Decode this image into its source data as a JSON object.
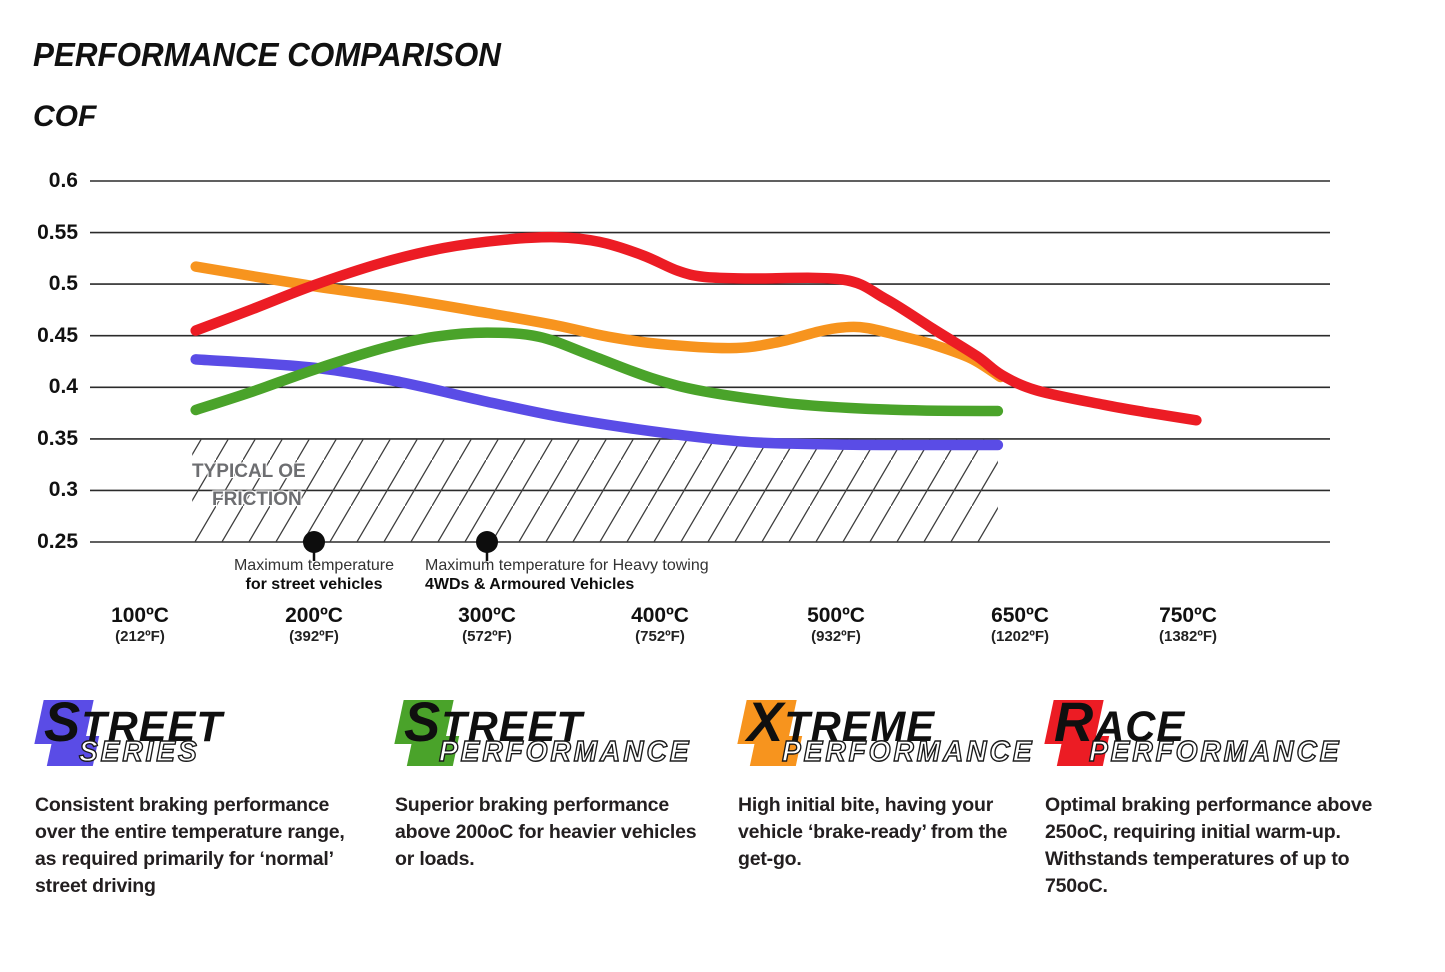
{
  "title": "PERFORMANCE COMPARISON",
  "y_axis_label": "COF",
  "chart_data": {
    "type": "line",
    "title": "PERFORMANCE COMPARISON",
    "ylabel": "COF",
    "ylim": [
      0.25,
      0.6
    ],
    "yticks": [
      0.6,
      0.55,
      0.5,
      0.45,
      0.4,
      0.35,
      0.3,
      0.25
    ],
    "grid": "horizontal",
    "x_ticks": [
      {
        "temp": 100,
        "c": "100ºC",
        "f": "(212ºF)"
      },
      {
        "temp": 200,
        "c": "200ºC",
        "f": "(392ºF)"
      },
      {
        "temp": 300,
        "c": "300ºC",
        "f": "(572ºF)"
      },
      {
        "temp": 400,
        "c": "400ºC",
        "f": "(752ºF)"
      },
      {
        "temp": 500,
        "c": "500ºC",
        "f": "(932ºF)"
      },
      {
        "temp": 650,
        "c": "650ºC",
        "f": "(1202ºF)"
      },
      {
        "temp": 750,
        "c": "750ºC",
        "f": "(1382ºF)"
      }
    ],
    "series": [
      {
        "name": "Street Series",
        "color": "#5a4ce6",
        "points": [
          [
            132,
            0.427
          ],
          [
            200,
            0.419
          ],
          [
            250,
            0.405
          ],
          [
            300,
            0.386
          ],
          [
            340,
            0.372
          ],
          [
            380,
            0.361
          ],
          [
            425,
            0.351
          ],
          [
            455,
            0.3465
          ],
          [
            500,
            0.3445
          ],
          [
            560,
            0.344
          ],
          [
            632,
            0.344
          ]
        ]
      },
      {
        "name": "Street Performance",
        "color": "#4aa32a",
        "points": [
          [
            132,
            0.378
          ],
          [
            165,
            0.396
          ],
          [
            200,
            0.417
          ],
          [
            240,
            0.438
          ],
          [
            270,
            0.449
          ],
          [
            300,
            0.453
          ],
          [
            330,
            0.449
          ],
          [
            360,
            0.431
          ],
          [
            395,
            0.409
          ],
          [
            425,
            0.396
          ],
          [
            470,
            0.385
          ],
          [
            510,
            0.38
          ],
          [
            570,
            0.3775
          ],
          [
            632,
            0.377
          ]
        ]
      },
      {
        "name": "Xtreme Performance",
        "color": "#f7941e",
        "points": [
          [
            132,
            0.517
          ],
          [
            200,
            0.498
          ],
          [
            250,
            0.486
          ],
          [
            300,
            0.472
          ],
          [
            340,
            0.46
          ],
          [
            370,
            0.449
          ],
          [
            400,
            0.442
          ],
          [
            440,
            0.438
          ],
          [
            465,
            0.443
          ],
          [
            490,
            0.454
          ],
          [
            505,
            0.458
          ],
          [
            525,
            0.4575
          ],
          [
            555,
            0.449
          ],
          [
            580,
            0.441
          ],
          [
            610,
            0.428
          ],
          [
            634,
            0.41
          ]
        ]
      },
      {
        "name": "Race Performance",
        "color": "#ec1c24",
        "points": [
          [
            132,
            0.455
          ],
          [
            165,
            0.476
          ],
          [
            200,
            0.499
          ],
          [
            240,
            0.521
          ],
          [
            275,
            0.535
          ],
          [
            310,
            0.543
          ],
          [
            340,
            0.5455
          ],
          [
            365,
            0.541
          ],
          [
            390,
            0.528
          ],
          [
            410,
            0.513
          ],
          [
            425,
            0.507
          ],
          [
            450,
            0.5055
          ],
          [
            505,
            0.5045
          ],
          [
            540,
            0.486
          ],
          [
            580,
            0.456
          ],
          [
            615,
            0.43
          ],
          [
            635,
            0.412
          ],
          [
            660,
            0.397
          ],
          [
            700,
            0.383
          ],
          [
            728,
            0.375
          ],
          [
            755,
            0.368
          ]
        ]
      }
    ],
    "oe_band": {
      "label_line1": "TYPICAL OE",
      "label_line2": "FRICTION",
      "from": 0.25,
      "to": 0.35,
      "x_from_temp": 130,
      "x_to_temp": 632
    },
    "annotations": [
      {
        "temp": 200,
        "cof": 0.25,
        "align": "center",
        "line1": "Maximum temperature",
        "line2": "for street vehicles"
      },
      {
        "temp": 300,
        "cof": 0.25,
        "align": "left",
        "line1": "Maximum temperature for Heavy towing",
        "line2": "4WDs & Armoured Vehicles"
      }
    ]
  },
  "legend": [
    {
      "series": "Street Series",
      "cap1": "S",
      "rest1": "TREET",
      "line2": "SERIES",
      "color": "#5a4ce6",
      "description": "Consistent braking performance over the entire temperature range, as required primarily for ‘normal’ street driving"
    },
    {
      "series": "Street Performance",
      "cap1": "S",
      "rest1": "TREET",
      "line2": "PERFORMANCE",
      "color": "#4aa32a",
      "description": "Superior braking performance above 200oC for heavier vehicles or loads."
    },
    {
      "series": "Xtreme Performance",
      "cap1": "X",
      "rest1": "TREME",
      "line2": "PERFORMANCE",
      "color": "#f7941e",
      "description": "High initial bite, having your vehicle ‘brake-ready’ from the get-go."
    },
    {
      "series": "Race Performance",
      "cap1": "R",
      "rest1": "ACE",
      "line2": "PERFORMANCE",
      "color": "#ec1c24",
      "description": "Optimal braking performance above 250oC, requiring initial warm-up. Withstands temperatures of up to 750oC."
    }
  ]
}
